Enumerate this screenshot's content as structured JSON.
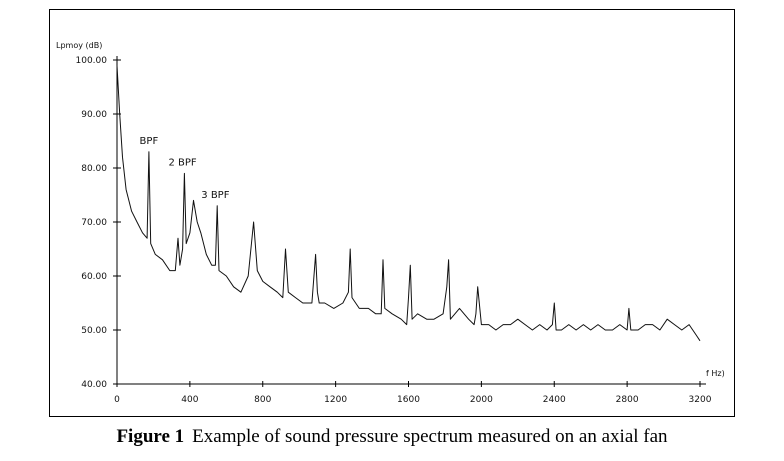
{
  "caption": {
    "number": "Figure 1",
    "text": "Example of sound pressure spectrum measured on an axial fan"
  },
  "chart_data": {
    "type": "line",
    "title": "",
    "ylabel": "Lpmoy (dB)",
    "xlabel": "f Hz)",
    "xlim": [
      0,
      3200
    ],
    "ylim": [
      40,
      100
    ],
    "x_ticks": [
      "0",
      "400",
      "800",
      "1200",
      "1600",
      "2000",
      "2400",
      "2800",
      "3200"
    ],
    "y_ticks": [
      "40.00",
      "50.00",
      "60.00",
      "70.00",
      "80.00",
      "90.00",
      "100.00"
    ],
    "grid": false,
    "annotations": [
      {
        "text": "BPF",
        "x": 175,
        "y": 83
      },
      {
        "text": "2 BPF",
        "x": 360,
        "y": 79
      },
      {
        "text": "3 BPF",
        "x": 540,
        "y": 73
      }
    ],
    "series": [
      {
        "x": [
          0,
          15,
          30,
          50,
          80,
          110,
          140,
          165,
          175,
          185,
          210,
          250,
          290,
          320,
          335,
          345,
          360,
          370,
          380,
          400,
          420,
          440,
          460,
          490,
          520,
          540,
          550,
          560,
          600,
          640,
          680,
          720,
          750,
          770,
          800,
          840,
          880,
          910,
          925,
          940,
          980,
          1020,
          1070,
          1090,
          1100,
          1110,
          1140,
          1190,
          1240,
          1270,
          1280,
          1290,
          1330,
          1380,
          1420,
          1450,
          1460,
          1470,
          1510,
          1560,
          1590,
          1600,
          1610,
          1620,
          1650,
          1700,
          1740,
          1790,
          1810,
          1820,
          1830,
          1880,
          1930,
          1960,
          1970,
          1980,
          2000,
          2040,
          2080,
          2120,
          2160,
          2200,
          2240,
          2280,
          2320,
          2360,
          2390,
          2400,
          2410,
          2440,
          2480,
          2520,
          2560,
          2600,
          2640,
          2680,
          2720,
          2760,
          2800,
          2810,
          2820,
          2860,
          2900,
          2940,
          2980,
          3020,
          3060,
          3100,
          3140,
          3180,
          3200
        ],
        "values": [
          99,
          90,
          82,
          76,
          72,
          70,
          68,
          67,
          83,
          66,
          64,
          63,
          61,
          61,
          67,
          62,
          65,
          79,
          66,
          68,
          74,
          70,
          68,
          64,
          62,
          62,
          73,
          61,
          60,
          58,
          57,
          60,
          70,
          61,
          59,
          58,
          57,
          56,
          65,
          57,
          56,
          55,
          55,
          64,
          57,
          55,
          55,
          54,
          55,
          57,
          65,
          56,
          54,
          54,
          53,
          53,
          63,
          54,
          53,
          52,
          51,
          56,
          62,
          52,
          53,
          52,
          52,
          53,
          58,
          63,
          52,
          54,
          52,
          51,
          53,
          58,
          51,
          51,
          50,
          51,
          51,
          52,
          51,
          50,
          51,
          50,
          51,
          55,
          50,
          50,
          51,
          50,
          51,
          50,
          51,
          50,
          50,
          51,
          50,
          54,
          50,
          50,
          51,
          51,
          50,
          52,
          51,
          50,
          51,
          49,
          48
        ]
      }
    ]
  }
}
